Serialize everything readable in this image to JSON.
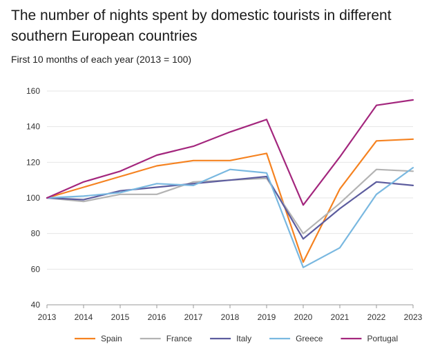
{
  "chart_data": {
    "type": "line",
    "title": "The number of nights spent by domestic tourists in different southern European countries",
    "subtitle": "First 10 months of each year (2013 = 100)",
    "xlabel": "",
    "ylabel": "",
    "categories": [
      "2013",
      "2014",
      "2015",
      "2016",
      "2017",
      "2018",
      "2019",
      "2020",
      "2021",
      "2022",
      "2023"
    ],
    "ylim": [
      40,
      160
    ],
    "yticks": [
      40,
      60,
      80,
      100,
      120,
      140,
      160
    ],
    "grid": true,
    "legend_position": "bottom",
    "series": [
      {
        "name": "Spain",
        "color": "#f58220",
        "values": [
          100,
          106,
          112,
          118,
          121,
          121,
          125,
          64,
          105,
          132,
          133
        ]
      },
      {
        "name": "France",
        "color": "#b3b3b3",
        "values": [
          100,
          98,
          102,
          102,
          109,
          110,
          111,
          80,
          97,
          116,
          115
        ]
      },
      {
        "name": "Italy",
        "color": "#5c5c9e",
        "values": [
          100,
          99,
          104,
          106,
          108,
          110,
          112,
          77,
          94,
          109,
          107
        ]
      },
      {
        "name": "Greece",
        "color": "#79b8e0",
        "values": [
          100,
          101,
          103,
          108,
          107,
          116,
          114,
          61,
          72,
          102,
          117
        ]
      },
      {
        "name": "Portugal",
        "color": "#a3267d",
        "values": [
          100,
          109,
          115,
          124,
          129,
          137,
          144,
          96,
          123,
          152,
          155
        ]
      }
    ]
  }
}
